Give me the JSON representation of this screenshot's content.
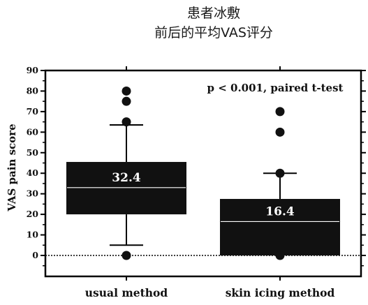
{
  "title_line1": "患者冰敷",
  "title_line2": "前后的平均VAS评分",
  "chart_data": {
    "type": "box",
    "ylabel": "VAS pain score",
    "xlabel": "",
    "ylim": [
      -10,
      90
    ],
    "y_ticks": [
      0,
      10,
      20,
      30,
      40,
      50,
      60,
      70,
      80,
      90
    ],
    "annotation": "p < 0.001, paired t-test",
    "reference_line": {
      "y": 0,
      "style": "dotted"
    },
    "groups": [
      {
        "category": "usual method",
        "q1": 20,
        "median": 33,
        "q3": 45.5,
        "whisker_low": 5,
        "whisker_high": 63.5,
        "mean_label": "32.4",
        "outliers": [
          80,
          75,
          65,
          0
        ]
      },
      {
        "category": "skin icing method",
        "q1": 0,
        "median": 16.5,
        "q3": 27.5,
        "whisker_low": 0,
        "whisker_high": 40,
        "mean_label": "16.4",
        "outliers": [
          70,
          60,
          40,
          0
        ]
      }
    ]
  }
}
